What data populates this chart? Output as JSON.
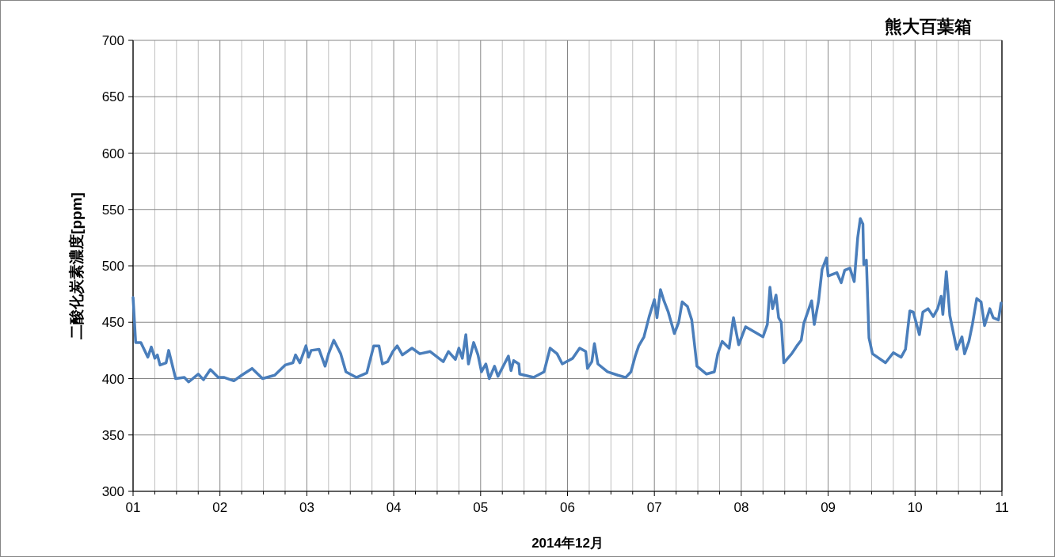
{
  "chart_data": {
    "type": "line",
    "title": "熊大百葉箱",
    "xlabel": "2014年12月",
    "ylabel": "二酸化炭素濃度[ppm]",
    "x": [
      1.0,
      1.03,
      1.09,
      1.17,
      1.21,
      1.25,
      1.28,
      1.31,
      1.38,
      1.41,
      1.49,
      1.59,
      1.64,
      1.75,
      1.81,
      1.89,
      1.98,
      2.05,
      2.16,
      2.25,
      2.37,
      2.49,
      2.63,
      2.75,
      2.84,
      2.87,
      2.92,
      2.99,
      3.02,
      3.05,
      3.14,
      3.21,
      3.25,
      3.31,
      3.39,
      3.45,
      3.57,
      3.69,
      3.77,
      3.83,
      3.87,
      3.93,
      3.99,
      4.04,
      4.1,
      4.21,
      4.3,
      4.42,
      4.57,
      4.63,
      4.71,
      4.75,
      4.79,
      4.83,
      4.86,
      4.92,
      4.97,
      5.01,
      5.06,
      5.1,
      5.16,
      5.2,
      5.32,
      5.35,
      5.38,
      5.44,
      5.45,
      5.61,
      5.73,
      5.8,
      5.88,
      5.94,
      6.06,
      6.14,
      6.21,
      6.23,
      6.28,
      6.31,
      6.35,
      6.46,
      6.58,
      6.67,
      6.73,
      6.78,
      6.82,
      6.88,
      6.94,
      7.0,
      7.03,
      7.07,
      7.11,
      7.16,
      7.23,
      7.28,
      7.32,
      7.38,
      7.43,
      7.49,
      7.6,
      7.69,
      7.73,
      7.78,
      7.86,
      7.91,
      7.97,
      8.05,
      8.16,
      8.25,
      8.3,
      8.33,
      8.36,
      8.4,
      8.43,
      8.46,
      8.49,
      8.58,
      8.64,
      8.69,
      8.72,
      8.81,
      8.84,
      8.89,
      8.93,
      8.98,
      9.0,
      9.1,
      9.15,
      9.19,
      9.25,
      9.3,
      9.34,
      9.37,
      9.4,
      9.41,
      9.44,
      9.47,
      9.51,
      9.66,
      9.75,
      9.84,
      9.89,
      9.94,
      9.98,
      10.05,
      10.09,
      10.15,
      10.21,
      10.26,
      10.3,
      10.32,
      10.36,
      10.4,
      10.44,
      10.48,
      10.54,
      10.57,
      10.62,
      10.66,
      10.71,
      10.76,
      10.8,
      10.86,
      10.9,
      10.96,
      10.99
    ],
    "series": [
      {
        "color": "#4a7ebb",
        "values": [
          472,
          432,
          432,
          419,
          428,
          418,
          421,
          412,
          414,
          425,
          400,
          401,
          397,
          404,
          399,
          408,
          401,
          401,
          398,
          403,
          409,
          400,
          403,
          412,
          414,
          421,
          414,
          429,
          419,
          425,
          426,
          411,
          422,
          434,
          422,
          406,
          401,
          405,
          429,
          429,
          413,
          415,
          424,
          429,
          421,
          427,
          422,
          424,
          415,
          424,
          417,
          427,
          418,
          439,
          413,
          432,
          421,
          406,
          413,
          400,
          411,
          402,
          420,
          407,
          416,
          413,
          404,
          401,
          406,
          427,
          422,
          413,
          418,
          427,
          424,
          409,
          415,
          431,
          413,
          406,
          403,
          401,
          406,
          420,
          429,
          437,
          455,
          470,
          454,
          479,
          469,
          459,
          440,
          450,
          468,
          464,
          452,
          411,
          404,
          406,
          422,
          433,
          427,
          454,
          430,
          446,
          441,
          437,
          448,
          481,
          462,
          474,
          454,
          450,
          414,
          422,
          429,
          434,
          449,
          469,
          448,
          469,
          497,
          507,
          491,
          494,
          485,
          496,
          498,
          486,
          525,
          542,
          537,
          501,
          505,
          436,
          422,
          414,
          423,
          419,
          426,
          460,
          459,
          439,
          459,
          462,
          455,
          462,
          473,
          457,
          495,
          456,
          441,
          426,
          437,
          422,
          433,
          448,
          471,
          468,
          447,
          462,
          454,
          452,
          467
        ]
      }
    ],
    "xlim": [
      1,
      11
    ],
    "ylim": [
      300,
      700
    ],
    "xticks": [
      {
        "value": 1,
        "label": "01"
      },
      {
        "value": 1.25,
        "label": null
      },
      {
        "value": 1.5,
        "label": null
      },
      {
        "value": 1.75,
        "label": null
      },
      {
        "value": 2,
        "label": "02"
      },
      {
        "value": 2.25,
        "label": null
      },
      {
        "value": 2.5,
        "label": null
      },
      {
        "value": 2.75,
        "label": null
      },
      {
        "value": 3,
        "label": "03"
      },
      {
        "value": 3.25,
        "label": null
      },
      {
        "value": 3.5,
        "label": null
      },
      {
        "value": 3.75,
        "label": null
      },
      {
        "value": 4,
        "label": "04"
      },
      {
        "value": 4.25,
        "label": null
      },
      {
        "value": 4.5,
        "label": null
      },
      {
        "value": 4.75,
        "label": null
      },
      {
        "value": 5,
        "label": "05"
      },
      {
        "value": 5.25,
        "label": null
      },
      {
        "value": 5.5,
        "label": null
      },
      {
        "value": 5.75,
        "label": null
      },
      {
        "value": 6,
        "label": "06"
      },
      {
        "value": 6.25,
        "label": null
      },
      {
        "value": 6.5,
        "label": null
      },
      {
        "value": 6.75,
        "label": null
      },
      {
        "value": 7,
        "label": "07"
      },
      {
        "value": 7.25,
        "label": null
      },
      {
        "value": 7.5,
        "label": null
      },
      {
        "value": 7.75,
        "label": null
      },
      {
        "value": 8,
        "label": "08"
      },
      {
        "value": 8.25,
        "label": null
      },
      {
        "value": 8.5,
        "label": null
      },
      {
        "value": 8.75,
        "label": null
      },
      {
        "value": 9,
        "label": "09"
      },
      {
        "value": 9.25,
        "label": null
      },
      {
        "value": 9.5,
        "label": null
      },
      {
        "value": 9.75,
        "label": null
      },
      {
        "value": 10,
        "label": "10"
      },
      {
        "value": 10.25,
        "label": null
      },
      {
        "value": 10.5,
        "label": null
      },
      {
        "value": 10.75,
        "label": null
      },
      {
        "value": 11,
        "label": "11"
      }
    ],
    "yticks": [
      300,
      350,
      400,
      450,
      500,
      550,
      600,
      650,
      700
    ],
    "grid": true,
    "marker": "none",
    "line_style": "solid"
  }
}
